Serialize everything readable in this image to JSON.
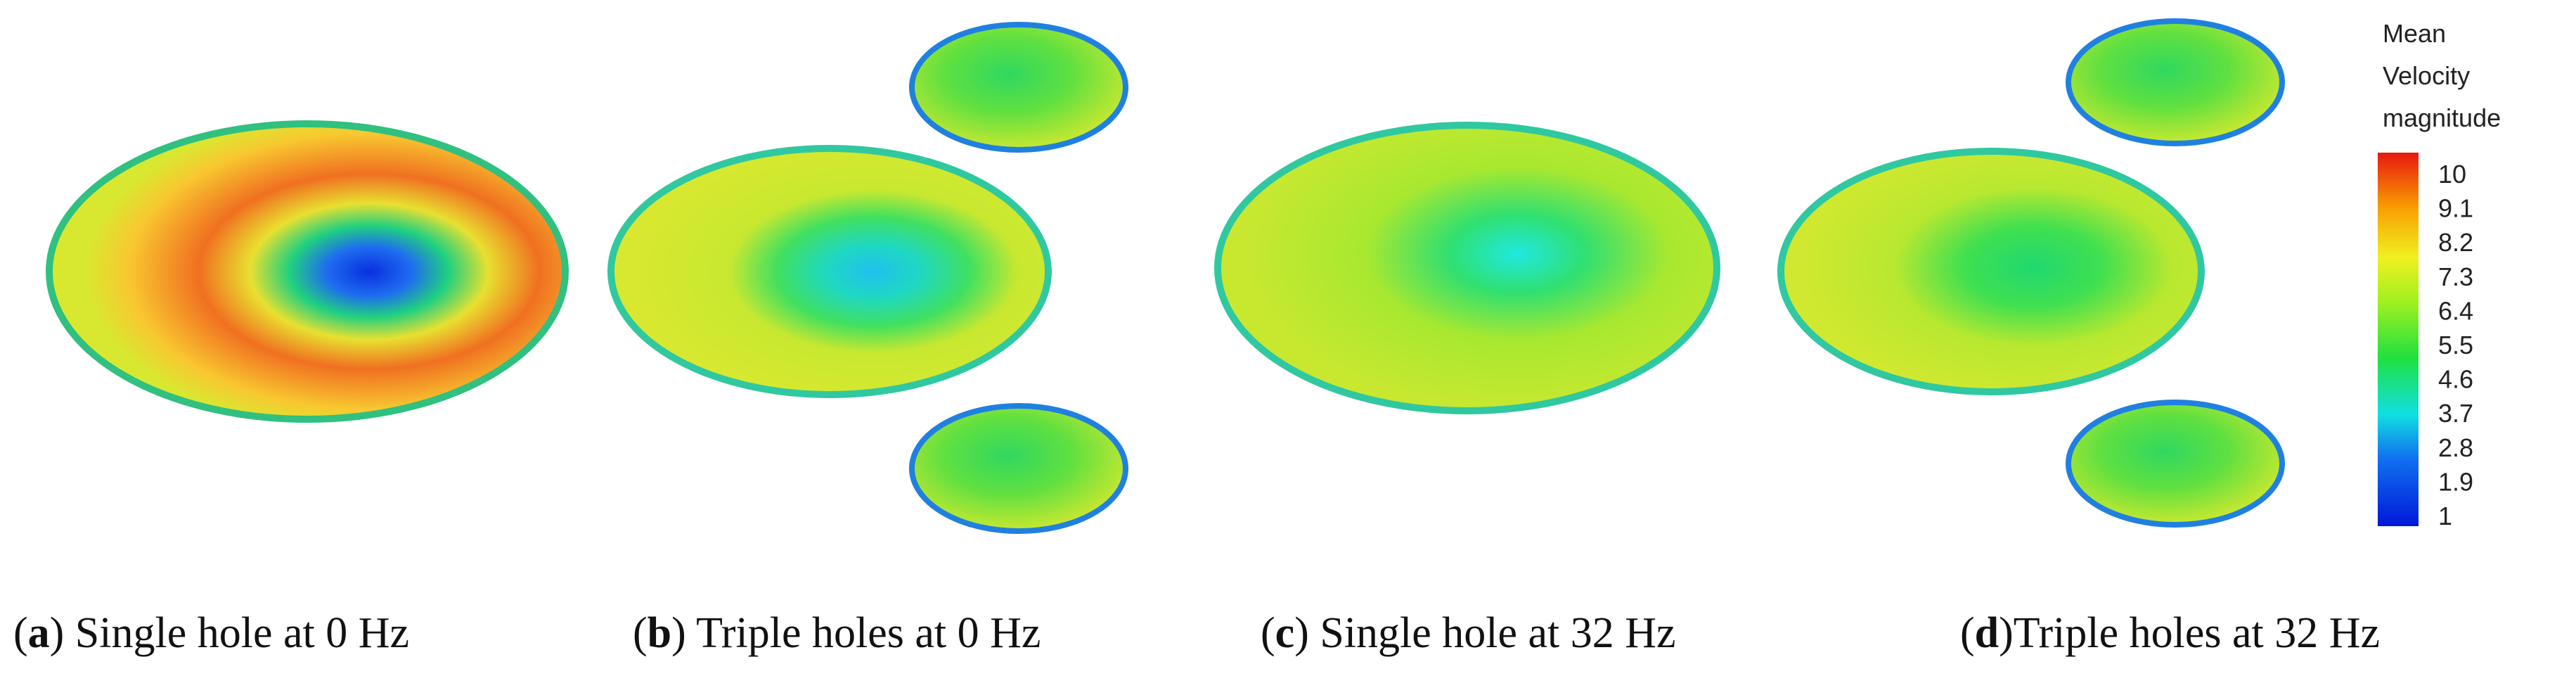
{
  "colorbar": {
    "title": [
      "Mean",
      "Velocity",
      "magnitude"
    ],
    "ticks": [
      10,
      9.1,
      8.2,
      7.3,
      6.4,
      5.5,
      4.6,
      3.7,
      2.8,
      1.9,
      1
    ]
  },
  "captions": [
    {
      "open": "(",
      "letter": "a",
      "rest": ") Single hole at 0 Hz"
    },
    {
      "open": "(",
      "letter": "b",
      "rest": ") Triple holes at 0 Hz"
    },
    {
      "open": "(",
      "letter": "c",
      "rest": ") Single hole at 32 Hz"
    },
    {
      "open": "(",
      "letter": "d",
      "rest": ")Triple holes at 32 Hz"
    }
  ]
}
